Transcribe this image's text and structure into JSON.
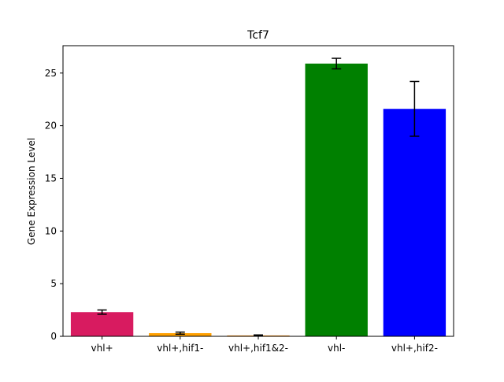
{
  "chart_data": {
    "type": "bar",
    "title": "Tcf7",
    "xlabel": "",
    "ylabel": "Gene Expression Level",
    "categories": [
      "vhl+",
      "vhl+,hif1-",
      "vhl+,hif1&2-",
      "vhl-",
      "vhl+,hif2-"
    ],
    "values": [
      2.3,
      0.3,
      0.08,
      25.9,
      21.6
    ],
    "errors": [
      0.2,
      0.1,
      0.05,
      0.5,
      2.6
    ],
    "colors": [
      "#d81b60",
      "#ffa000",
      "#ff8c00",
      "#008000",
      "#0000ff"
    ],
    "ylim": [
      0,
      27.6
    ],
    "yticks": [
      0,
      5,
      10,
      15,
      20,
      25
    ],
    "grid": false,
    "legend": "none"
  }
}
